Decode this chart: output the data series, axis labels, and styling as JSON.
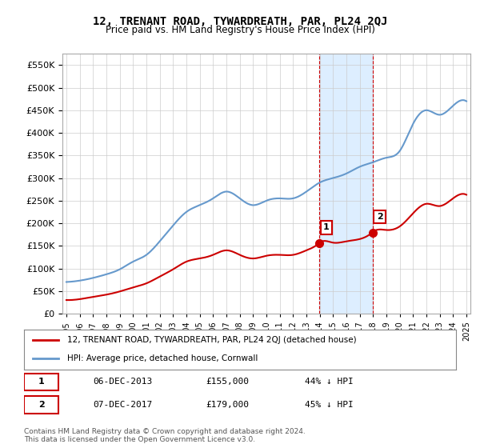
{
  "title": "12, TRENANT ROAD, TYWARDREATH, PAR, PL24 2QJ",
  "subtitle": "Price paid vs. HM Land Registry's House Price Index (HPI)",
  "legend_line1": "12, TRENANT ROAD, TYWARDREATH, PAR, PL24 2QJ (detached house)",
  "legend_line2": "HPI: Average price, detached house, Cornwall",
  "transaction1_date": "06-DEC-2013",
  "transaction1_price": 155000,
  "transaction1_label": "44% ↓ HPI",
  "transaction2_date": "07-DEC-2017",
  "transaction2_price": 179000,
  "transaction2_label": "45% ↓ HPI",
  "footer": "Contains HM Land Registry data © Crown copyright and database right 2024.\nThis data is licensed under the Open Government Licence v3.0.",
  "hpi_color": "#6699cc",
  "price_color": "#cc0000",
  "highlight_color": "#ddeeff",
  "transaction_marker_color": "#cc0000",
  "ylim": [
    0,
    575000
  ],
  "yticks": [
    0,
    50000,
    100000,
    150000,
    200000,
    250000,
    300000,
    350000,
    400000,
    450000,
    500000,
    550000
  ],
  "ylabel_format": "£{:,}",
  "background_color": "#ffffff",
  "grid_color": "#cccccc"
}
